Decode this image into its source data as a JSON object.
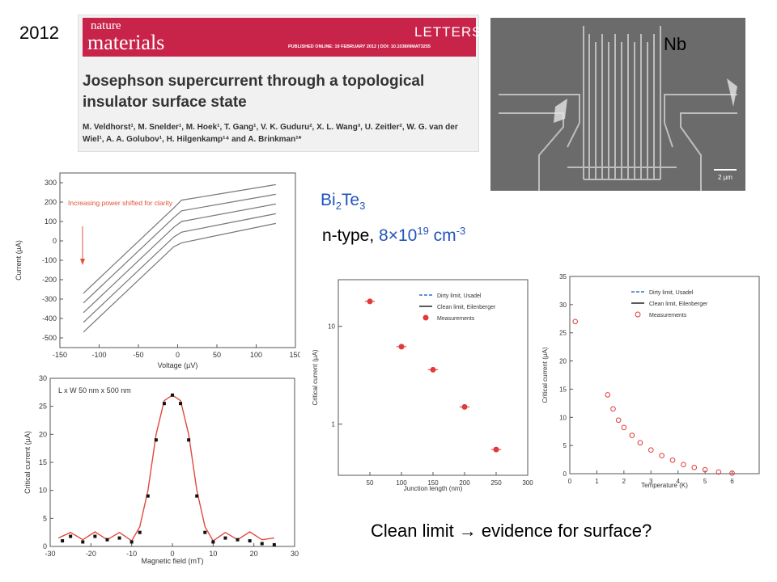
{
  "slide": {
    "year": "2012",
    "nb_label": "Nb",
    "material": {
      "base": "Bi",
      "sub1": "2",
      "mid": "Te",
      "sub2": "3"
    },
    "doping": {
      "prefix": "n-type, ",
      "value": "8",
      "times": "×",
      "base": "10",
      "exp": "19",
      "unit": " cm",
      "unit_exp": "-3"
    },
    "conclusion": "Clean limit → evidence for surface?"
  },
  "paper_header": {
    "journal_line1": "nature",
    "journal_line2": "materials",
    "section": "LETTERS",
    "published": "PUBLISHED ONLINE: 19 FEBRUARY 2012 | DOI: 10.1038/NMAT3255",
    "title": "Josephson supercurrent through a topological insulator surface state",
    "authors": "M. Veldhorst¹, M. Snelder¹, M. Hoek¹, T. Gang¹, V. K. Guduru², X. L. Wang³, U. Zeitler², W. G. van der Wiel¹, A. A. Golubov¹, H. Hilgenkamp¹⁴ and A. Brinkman¹*"
  },
  "sem_image": {
    "scale_label": "2 µm"
  },
  "chart_data": [
    {
      "type": "line",
      "xlabel": "Voltage (µV)",
      "ylabel": "Current (µA)",
      "xlim": [
        -150,
        150
      ],
      "ylim": [
        -550,
        350
      ],
      "xticks": [
        -150,
        -100,
        -50,
        0,
        50,
        100,
        150
      ],
      "yticks": [
        -500,
        -400,
        -300,
        -200,
        -100,
        0,
        100,
        200,
        300
      ],
      "annotation": "Increasing power shifted for clarity",
      "series": [
        {
          "x": [
            -120,
            -5,
            5,
            125
          ],
          "y": [
            -270,
            170,
            210,
            290
          ]
        },
        {
          "x": [
            -120,
            -5,
            5,
            125
          ],
          "y": [
            -320,
            120,
            155,
            240
          ]
        },
        {
          "x": [
            -120,
            -5,
            5,
            125
          ],
          "y": [
            -370,
            70,
            100,
            190
          ]
        },
        {
          "x": [
            -120,
            -5,
            5,
            125
          ],
          "y": [
            -420,
            20,
            45,
            140
          ]
        },
        {
          "x": [
            -120,
            -5,
            5,
            125
          ],
          "y": [
            -470,
            -30,
            -10,
            90
          ]
        }
      ]
    },
    {
      "type": "line",
      "xlabel": "Magnetic field (mT)",
      "ylabel": "Critical current (µA)",
      "xlim": [
        -30,
        30
      ],
      "ylim": [
        0,
        30
      ],
      "xticks": [
        -30,
        -20,
        -10,
        0,
        10,
        20,
        30
      ],
      "yticks": [
        0,
        5,
        10,
        15,
        20,
        25,
        30
      ],
      "annotation": "L x W 50 nm x 500 nm",
      "series": [
        {
          "x": [
            -28,
            -25,
            -22,
            -19,
            -16,
            -13,
            -10,
            -8,
            -6,
            -4,
            -2,
            0,
            2,
            4,
            6,
            8,
            10,
            13,
            16,
            19,
            22,
            25
          ],
          "y": [
            1.5,
            2.5,
            1.2,
            2.6,
            1.2,
            2.5,
            1.0,
            3.5,
            10,
            20,
            26,
            27,
            26,
            20,
            10,
            3.5,
            1.0,
            2.5,
            1.2,
            2.6,
            1.2,
            1.5
          ]
        },
        {
          "x": [
            -27,
            -25,
            -22,
            -19,
            -16,
            -13,
            -10,
            -8,
            -6,
            -4,
            -2,
            0,
            2,
            4,
            6,
            8,
            10,
            13,
            16,
            19,
            22,
            25
          ],
          "y": [
            1.0,
            1.8,
            0.8,
            1.8,
            1.2,
            1.5,
            0.8,
            2.5,
            9,
            19,
            25.5,
            27,
            25.5,
            19,
            9,
            2.5,
            0.8,
            1.5,
            1.2,
            1.0,
            0.5,
            0.3
          ]
        }
      ]
    },
    {
      "type": "scatter",
      "xlabel": "Junction length (nm)",
      "ylabel": "Critical current (µA)",
      "xlim": [
        0,
        300
      ],
      "ylim": [
        0.3,
        30
      ],
      "yscale": "log",
      "xticks": [
        50,
        100,
        150,
        200,
        250,
        300
      ],
      "ytick_labels": [
        "1",
        "10"
      ],
      "legend": [
        "Dirty limit, Usadel",
        "Clean limit, Eilenberger",
        "Measurements"
      ],
      "series": [
        {
          "x": [
            50,
            100,
            150,
            200,
            250
          ],
          "y": [
            18,
            6.2,
            3.6,
            1.5,
            0.55
          ]
        }
      ]
    },
    {
      "type": "scatter",
      "xlabel": "Temperature (K)",
      "ylabel": "Critical current (µA)",
      "xlim": [
        0,
        7
      ],
      "ylim": [
        0,
        35
      ],
      "xticks": [
        0,
        1,
        2,
        3,
        4,
        5,
        6
      ],
      "yticks": [
        0,
        5,
        10,
        15,
        20,
        25,
        30,
        35
      ],
      "legend": [
        "Dirty limit, Usadel",
        "Clean limit, Eilenberger",
        "Measurements"
      ],
      "series": [
        {
          "x": [
            0.2,
            1.4,
            1.6,
            1.8,
            2.0,
            2.3,
            2.6,
            3.0,
            3.4,
            3.8,
            4.2,
            4.6,
            5.0,
            5.5,
            6.0
          ],
          "y": [
            27,
            14,
            11.5,
            9.5,
            8.2,
            6.8,
            5.5,
            4.2,
            3.2,
            2.4,
            1.6,
            1.1,
            0.7,
            0.3,
            0.1
          ]
        }
      ]
    }
  ]
}
